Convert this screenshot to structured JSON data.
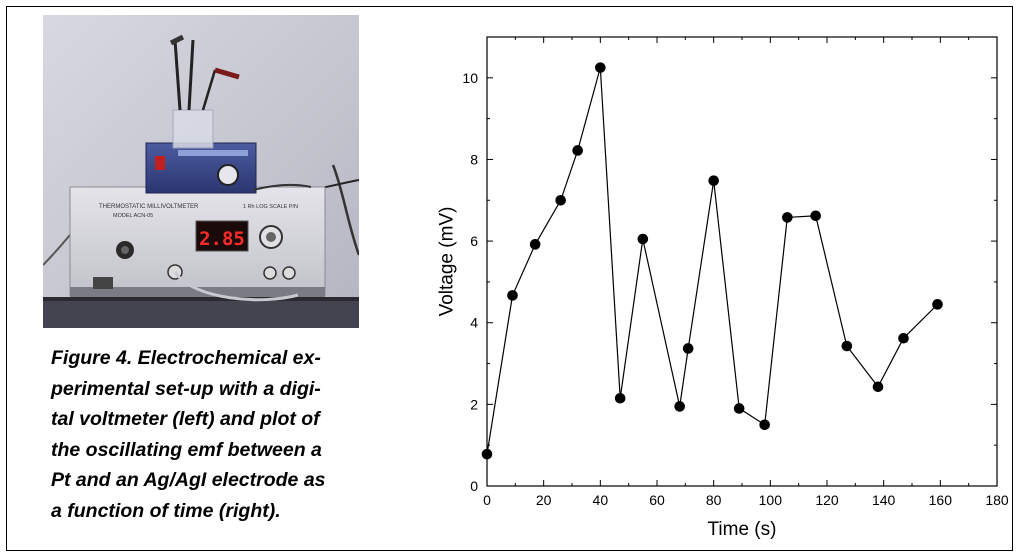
{
  "photo": {
    "panel_left_text": "THERMOSTATIC MILLIVOLTMETER",
    "panel_model_text": "MODEL ACN-05",
    "panel_right_text": "1 Rh LOG SCALE P/N",
    "display_reading": "2.85",
    "colors": {
      "wall": "#c9c9d2",
      "instrument_body": "#d6d6dc",
      "display_bg": "#1a0a0a",
      "display_digits": "#ff2a2a",
      "small_unit": "#3a4a8c"
    }
  },
  "caption": {
    "lines": [
      "Figure 4.  Electrochemical ex-",
      "perimental set-up with a digi-",
      "tal voltmeter (left) and plot of",
      "the oscillating emf between a",
      "Pt and an Ag/AgI electrode as",
      "a function of time (right)."
    ]
  },
  "chart_data": {
    "type": "line",
    "title": "",
    "xlabel": "Time  (s)",
    "ylabel": "Voltage  (mV)",
    "xlim": [
      0,
      180
    ],
    "ylim": [
      0,
      11
    ],
    "xticks": [
      0,
      20,
      40,
      60,
      80,
      100,
      120,
      140,
      160,
      180
    ],
    "yticks": [
      0,
      2,
      4,
      6,
      8,
      10
    ],
    "grid": false,
    "legend": "none",
    "marker": "filled-circle",
    "colors": {
      "line": "#000000",
      "marker": "#000000",
      "axes": "#000000"
    },
    "series": [
      {
        "x": [
          0,
          9,
          17,
          26,
          32,
          40,
          47,
          55,
          68,
          71,
          80,
          89,
          98,
          106,
          116,
          127,
          138,
          147,
          159
        ],
        "y": [
          0.78,
          4.67,
          5.92,
          7.0,
          8.22,
          10.25,
          2.15,
          6.05,
          1.95,
          3.37,
          7.48,
          1.9,
          1.5,
          6.58,
          6.62,
          3.43,
          2.43,
          3.62,
          4.45
        ]
      }
    ]
  }
}
